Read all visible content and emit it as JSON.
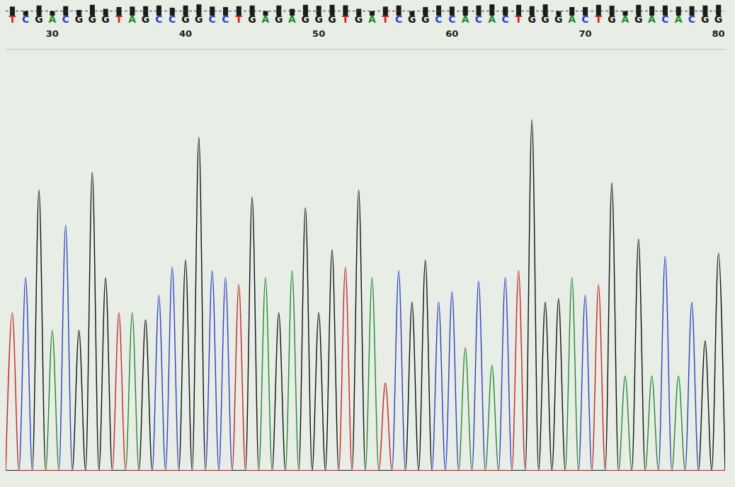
{
  "chart_data": {
    "type": "chromatogram",
    "x": [
      27,
      28,
      29,
      30,
      31,
      32,
      33,
      34,
      35,
      36,
      37,
      38,
      39,
      40,
      41,
      42,
      43,
      44,
      45,
      46,
      47,
      48,
      49,
      50,
      51,
      52,
      53,
      54,
      55,
      56,
      57,
      58,
      59,
      60,
      61,
      62,
      63,
      64,
      65,
      66,
      67,
      68,
      69,
      70,
      71,
      72,
      73,
      74,
      75,
      76,
      77,
      78,
      79,
      80
    ],
    "bases": [
      "T",
      "C",
      "G",
      "A",
      "C",
      "G",
      "G",
      "G",
      "T",
      "A",
      "G",
      "C",
      "C",
      "G",
      "G",
      "C",
      "C",
      "T",
      "G",
      "A",
      "G",
      "A",
      "G",
      "G",
      "G",
      "T",
      "G",
      "A",
      "T",
      "C",
      "G",
      "G",
      "C",
      "C",
      "A",
      "C",
      "A",
      "C",
      "T",
      "G",
      "G",
      "G",
      "A",
      "C",
      "T",
      "G",
      "A",
      "G",
      "A",
      "C",
      "A",
      "C",
      "G",
      "G"
    ],
    "xlim": [
      26.5,
      80.5
    ],
    "xticks": [
      30,
      40,
      50,
      60,
      70,
      80
    ],
    "ylim": [
      0,
      120
    ],
    "tick_labels": "x",
    "series": [
      {
        "name": "A",
        "color": "#1f8a2e",
        "values": [
          null,
          null,
          null,
          40,
          null,
          null,
          null,
          null,
          null,
          45,
          null,
          null,
          null,
          null,
          null,
          null,
          null,
          null,
          null,
          55,
          null,
          57,
          null,
          null,
          null,
          null,
          null,
          55,
          null,
          null,
          null,
          null,
          null,
          null,
          35,
          null,
          30,
          null,
          null,
          null,
          null,
          null,
          55,
          null,
          null,
          null,
          27,
          null,
          27,
          null,
          27,
          null,
          null,
          null
        ]
      },
      {
        "name": "C",
        "color": "#2a3fd0",
        "values": [
          null,
          55,
          null,
          null,
          70,
          null,
          null,
          null,
          null,
          null,
          null,
          50,
          58,
          null,
          null,
          57,
          55,
          null,
          null,
          null,
          null,
          null,
          null,
          null,
          null,
          null,
          null,
          null,
          null,
          57,
          null,
          null,
          48,
          51,
          null,
          54,
          null,
          55,
          null,
          null,
          null,
          null,
          null,
          50,
          null,
          null,
          null,
          null,
          null,
          61,
          null,
          48,
          null,
          null
        ]
      },
      {
        "name": "G",
        "color": "#111111",
        "values": [
          null,
          null,
          80,
          null,
          null,
          40,
          85,
          55,
          null,
          null,
          43,
          null,
          null,
          60,
          95,
          null,
          null,
          null,
          78,
          null,
          45,
          null,
          75,
          45,
          63,
          null,
          80,
          null,
          null,
          null,
          48,
          60,
          null,
          null,
          null,
          null,
          null,
          null,
          null,
          100,
          48,
          49,
          null,
          null,
          null,
          82,
          null,
          66,
          null,
          null,
          null,
          null,
          37,
          62
        ]
      },
      {
        "name": "T",
        "color": "#d02020",
        "values": [
          45,
          null,
          null,
          null,
          null,
          null,
          null,
          null,
          45,
          null,
          null,
          null,
          null,
          null,
          null,
          null,
          null,
          53,
          null,
          null,
          null,
          null,
          null,
          null,
          null,
          58,
          null,
          null,
          25,
          null,
          null,
          null,
          null,
          null,
          null,
          null,
          null,
          null,
          57,
          null,
          null,
          null,
          null,
          null,
          53,
          null,
          null,
          null,
          null,
          null,
          null,
          null,
          null,
          null
        ]
      }
    ],
    "quality": [
      40,
      20,
      45,
      20,
      42,
      25,
      48,
      30,
      38,
      40,
      42,
      45,
      35,
      45,
      50,
      40,
      38,
      42,
      45,
      20,
      45,
      30,
      48,
      44,
      48,
      46,
      30,
      20,
      40,
      45,
      20,
      38,
      45,
      40,
      42,
      45,
      50,
      40,
      48,
      42,
      50,
      20,
      38,
      38,
      48,
      44,
      20,
      48,
      42,
      45,
      40,
      42,
      45,
      48
    ],
    "quality_lim": [
      0,
      60
    ],
    "quality_threshold": 20
  }
}
